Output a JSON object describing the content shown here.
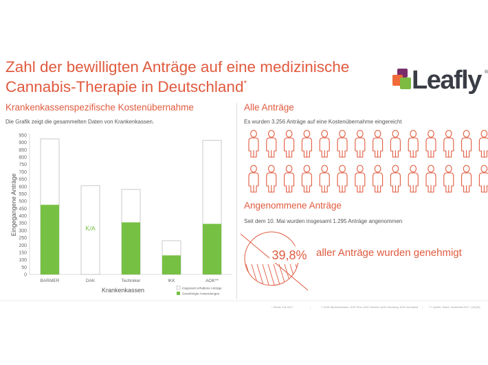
{
  "title": {
    "line1": "Zahl der bewilligten Anträge auf eine medizinische",
    "line2": "Cannabis-Therapie in Deutschland",
    "mark": "*"
  },
  "logo": {
    "text": "Leafly",
    "tm": "®"
  },
  "left": {
    "heading": "Krankenkassenspezifische Kostenübernahme",
    "description": "Die Grafik zeigt die gesammelten Daten von Krankenkassen."
  },
  "right": {
    "heading1": "Alle Anträge",
    "description1": "Es wurden 3.256 Anträge auf eine Kostenübernahme eingereicht",
    "people_rows": 2,
    "people_cols": 14,
    "heading2": "Angenommene Anträge",
    "description2": "Seit dem 10. Mai wurden insgesamt 1.295 Anträge angenommen",
    "percent": "39,8%",
    "percent_value": 39.8,
    "percent_caption": "aller Anträge wurden genehmigt"
  },
  "chart_data": {
    "type": "bar",
    "categories": [
      "BARMER",
      "DAK",
      "Techniker",
      "IKK",
      "AOK**"
    ],
    "series": [
      {
        "name": "Insgesamt erhaltene Anträge",
        "values": [
          925,
          605,
          580,
          230,
          915
        ],
        "color": "#ffffff"
      },
      {
        "name": "Genehmigte Anwendungen",
        "values": [
          475,
          null,
          355,
          130,
          345
        ],
        "color": "#76c043"
      }
    ],
    "annotations": [
      {
        "category": "DAK",
        "text": "K/A"
      }
    ],
    "xlabel": "Krankenkassen",
    "ylabel": "Eingegangene Anträge",
    "ylim": [
      0,
      950
    ],
    "yticks": [
      0,
      50,
      100,
      150,
      200,
      250,
      300,
      350,
      400,
      450,
      500,
      550,
      600,
      650,
      700,
      750,
      800,
      850,
      900,
      950
    ],
    "grid": false,
    "legend_position": "bottom-right"
  },
  "footer": {
    "note1": "* Stand: Juli 2017",
    "note2": "** AOK Niedersachsen, AOK Plus, AOK Hessen, AOK Hamburg, AOK Nordwest",
    "note3": "*** Quelle: Dtsch. Ärzteblatt 2017; 114(29)",
    "sep": "|"
  },
  "colors": {
    "accent": "#e05a3e",
    "bar_green": "#76c043",
    "logo_purple": "#7a2d6b",
    "logo_orange": "#f06a3a",
    "logo_green": "#7dbb42",
    "text": "#444444"
  }
}
